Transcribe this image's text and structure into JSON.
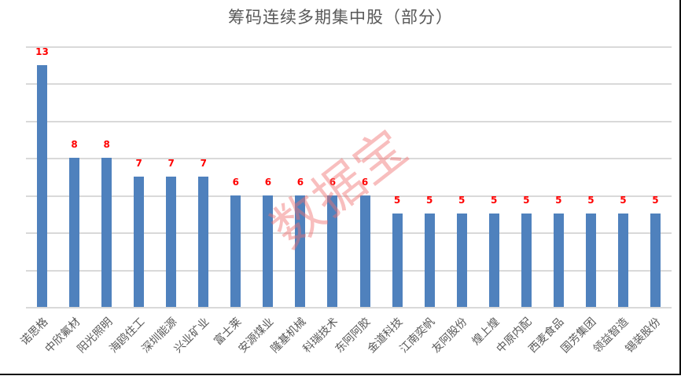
{
  "chart_data": {
    "type": "bar",
    "title": "筹码连续多期集中股（部分）",
    "xlabel": "",
    "ylabel": "",
    "ylim": [
      0,
      14
    ],
    "grid": true,
    "legend": null,
    "categories": [
      "诺思格",
      "中欣氟材",
      "阳光照明",
      "海鸥住工",
      "深圳能源",
      "兴业矿业",
      "富士莱",
      "安源煤业",
      "隆基机械",
      "科瑞技术",
      "东阿阿胶",
      "金道科技",
      "江南奕帆",
      "友阿股份",
      "煌上煌",
      "中原内配",
      "西麦食品",
      "国芳集团",
      "领益智造",
      "锡装股份"
    ],
    "values": [
      13,
      8,
      8,
      7,
      7,
      7,
      6,
      6,
      6,
      6,
      6,
      5,
      5,
      5,
      5,
      5,
      5,
      5,
      5,
      5
    ],
    "bar_color": "#4f81bd",
    "label_color": "#ff0000",
    "annotations": [
      "数据宝"
    ]
  },
  "watermark": "数据宝"
}
